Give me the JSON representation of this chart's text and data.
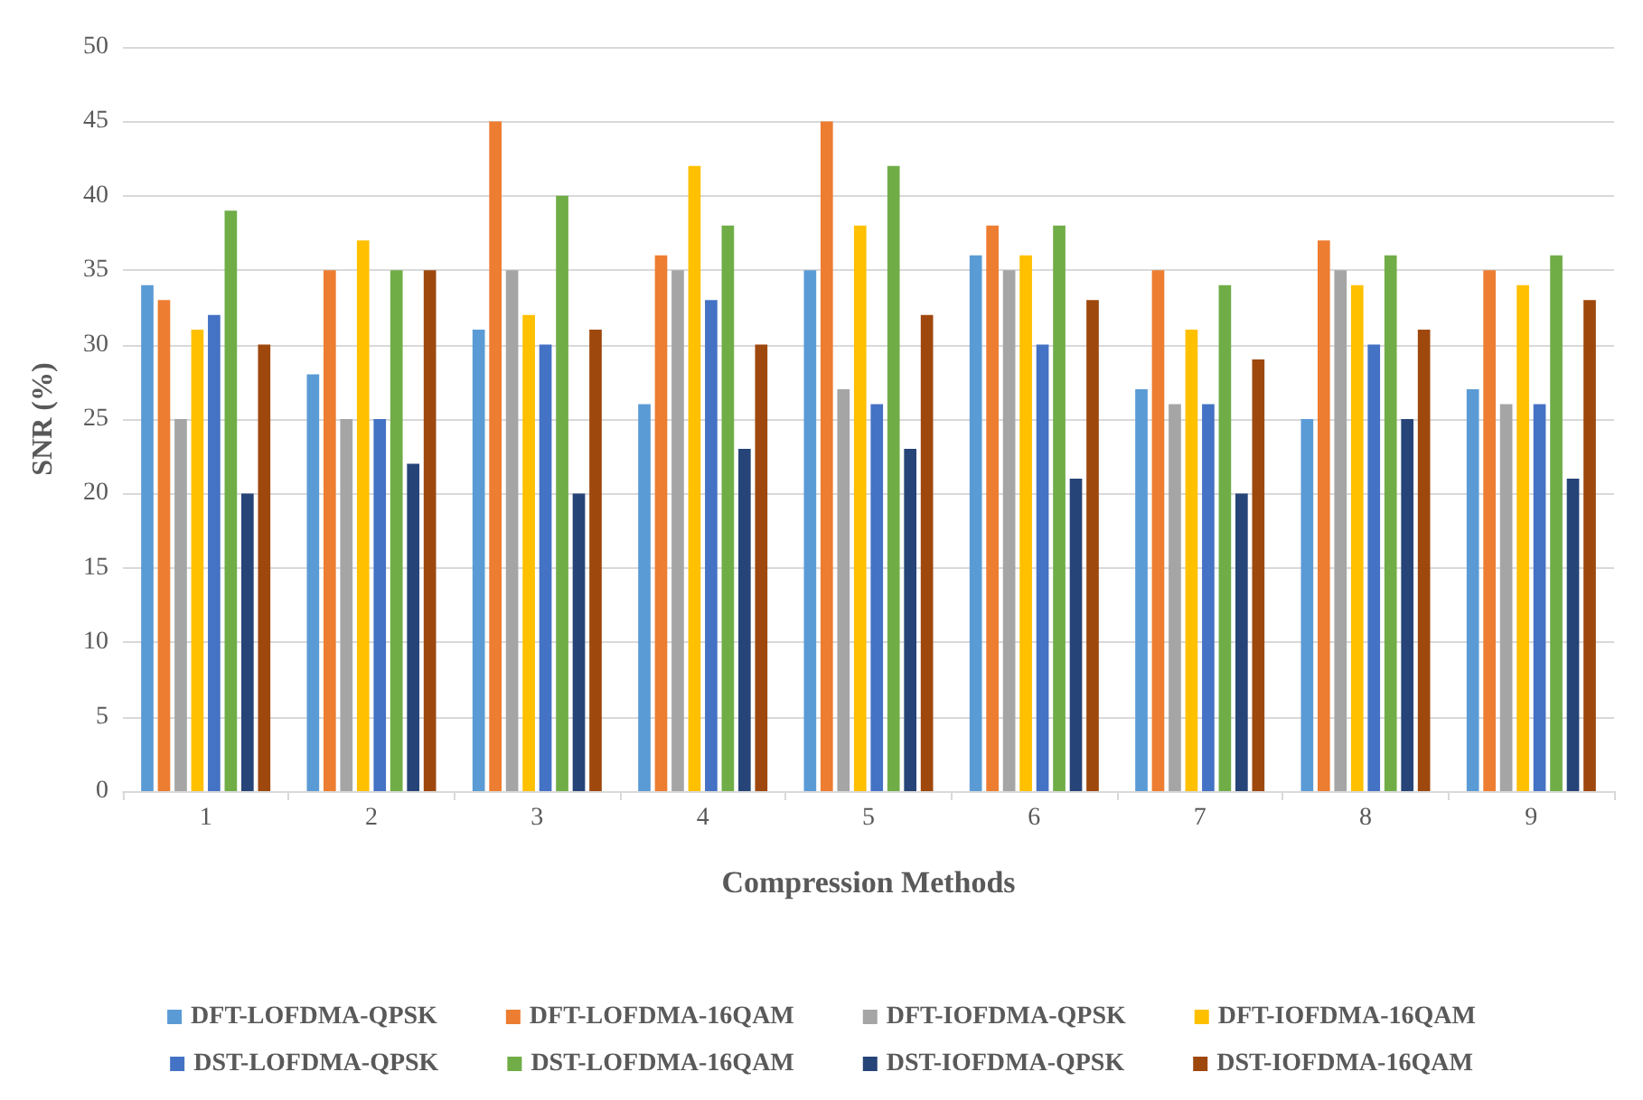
{
  "chart_data": {
    "type": "bar",
    "xlabel": "Compression Methods",
    "ylabel": "SNR (%)",
    "categories": [
      "1",
      "2",
      "3",
      "4",
      "5",
      "6",
      "7",
      "8",
      "9"
    ],
    "series": [
      {
        "name": "DFT-LOFDMA-QPSK",
        "color": "#5b9bd5",
        "values": [
          34,
          28,
          31,
          26,
          35,
          36,
          27,
          25,
          27
        ]
      },
      {
        "name": "DFT-LOFDMA-16QAM",
        "color": "#ed7d31",
        "values": [
          33,
          35,
          45,
          36,
          45,
          38,
          35,
          37,
          35
        ]
      },
      {
        "name": "DFT-IOFDMA-QPSK",
        "color": "#a5a5a5",
        "values": [
          25,
          25,
          35,
          35,
          27,
          35,
          26,
          35,
          26
        ]
      },
      {
        "name": "DFT-IOFDMA-16QAM",
        "color": "#ffc000",
        "values": [
          31,
          37,
          32,
          42,
          38,
          36,
          31,
          34,
          34
        ]
      },
      {
        "name": "DST-LOFDMA-QPSK",
        "color": "#4472c4",
        "values": [
          32,
          25,
          30,
          33,
          26,
          30,
          26,
          30,
          26
        ]
      },
      {
        "name": "DST-LOFDMA-16QAM",
        "color": "#70ad47",
        "values": [
          39,
          35,
          40,
          38,
          42,
          38,
          34,
          36,
          36
        ]
      },
      {
        "name": "DST-IOFDMA-QPSK",
        "color": "#264478",
        "values": [
          20,
          22,
          20,
          23,
          23,
          21,
          20,
          25,
          21
        ]
      },
      {
        "name": "DST-IOFDMA-16QAM",
        "color": "#9e480e",
        "values": [
          30,
          35,
          31,
          30,
          32,
          33,
          29,
          31,
          33
        ]
      }
    ],
    "ylim": [
      0,
      50
    ],
    "yticks": [
      0,
      5,
      10,
      15,
      20,
      25,
      30,
      35,
      40,
      45,
      50
    ],
    "grid": "y",
    "legend": "bottom"
  }
}
